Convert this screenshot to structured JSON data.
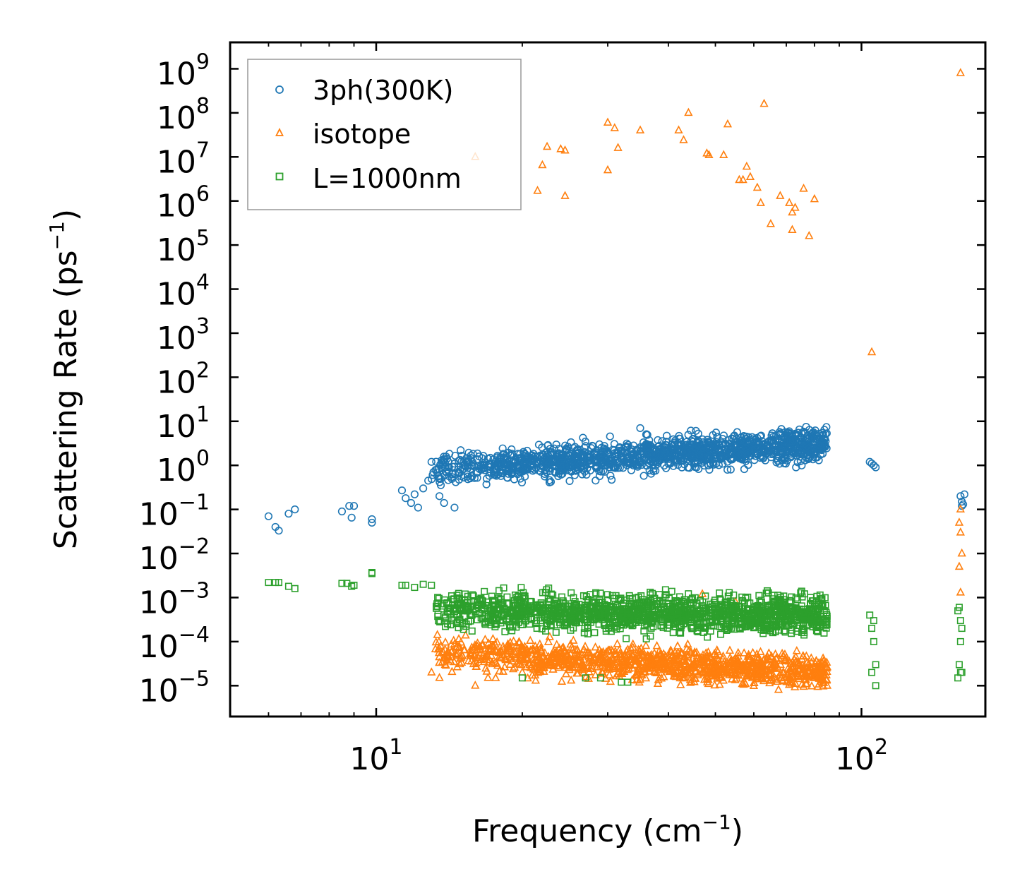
{
  "chart_data": {
    "type": "scatter",
    "title": "",
    "xlabel": "Frequency (cm",
    "xlabel_sup": "−1",
    "xlabel_end": ")",
    "ylabel": "Scattering Rate (ps",
    "ylabel_sup": "−1",
    "ylabel_end": ")",
    "xscale": "log",
    "yscale": "log",
    "xlim": [
      5.0,
      180.0
    ],
    "ylim_exp": [
      -5.7,
      9.6
    ],
    "x_ticks": [
      {
        "base": "10",
        "exp": "1",
        "value": 10
      },
      {
        "base": "10",
        "exp": "2",
        "value": 100
      }
    ],
    "y_ticks": [
      {
        "base": "10",
        "exp": "9",
        "value": 9
      },
      {
        "base": "10",
        "exp": "8",
        "value": 8
      },
      {
        "base": "10",
        "exp": "7",
        "value": 7
      },
      {
        "base": "10",
        "exp": "6",
        "value": 6
      },
      {
        "base": "10",
        "exp": "5",
        "value": 5
      },
      {
        "base": "10",
        "exp": "4",
        "value": 4
      },
      {
        "base": "10",
        "exp": "3",
        "value": 3
      },
      {
        "base": "10",
        "exp": "2",
        "value": 2
      },
      {
        "base": "10",
        "exp": "1",
        "value": 1
      },
      {
        "base": "10",
        "exp": "0",
        "value": 0
      },
      {
        "base": "10",
        "exp": "−1",
        "value": -1
      },
      {
        "base": "10",
        "exp": "−2",
        "value": -2
      },
      {
        "base": "10",
        "exp": "−3",
        "value": -3
      },
      {
        "base": "10",
        "exp": "−4",
        "value": -4
      },
      {
        "base": "10",
        "exp": "−5",
        "value": -5
      }
    ],
    "legend_position": "upper-left",
    "series": [
      {
        "name": "3ph(300K)",
        "marker": "circle",
        "color": "#1f77b4",
        "points": [
          [
            6.0,
            0.07
          ],
          [
            6.2,
            0.04
          ],
          [
            6.3,
            0.033
          ],
          [
            6.6,
            0.08
          ],
          [
            6.8,
            0.1
          ],
          [
            8.5,
            0.09
          ],
          [
            8.8,
            0.12
          ],
          [
            9.0,
            0.12
          ],
          [
            8.9,
            0.065
          ],
          [
            9.8,
            0.06
          ],
          [
            9.8,
            0.05
          ],
          [
            11.3,
            0.27
          ],
          [
            11.5,
            0.18
          ],
          [
            11.8,
            0.14
          ],
          [
            12.0,
            0.22
          ],
          [
            12.2,
            0.11
          ],
          [
            12.5,
            0.3
          ],
          [
            12.8,
            0.45
          ],
          [
            13.0,
            1.2
          ],
          [
            13.5,
            0.2
          ],
          [
            13.8,
            0.14
          ],
          [
            14.5,
            0.11
          ],
          [
            104,
            1.2
          ],
          [
            105,
            1.1
          ],
          [
            106,
            1.0
          ],
          [
            107,
            0.9
          ],
          [
            160,
            0.2
          ],
          [
            161,
            0.15
          ],
          [
            162,
            0.13
          ],
          [
            163,
            0.22
          ],
          [
            161,
            0.12
          ],
          [
            35,
            7.0
          ],
          [
            36,
            5.0
          ],
          [
            45,
            4.0
          ],
          [
            68,
            5.0
          ],
          [
            74,
            5.5
          ]
        ],
        "band": {
          "x_start": 13.0,
          "x_end": 85.0,
          "log_center_start": -0.1,
          "log_center_end": 0.5,
          "log_spread": 0.35,
          "count": 1500
        }
      },
      {
        "name": "isotope",
        "marker": "triangle",
        "color": "#ff7f0e",
        "points": [
          [
            16.0,
            10000000.0
          ],
          [
            21.5,
            1700000.0
          ],
          [
            22.0,
            6500000.0
          ],
          [
            22.5,
            17000000.0
          ],
          [
            24.0,
            15000000.0
          ],
          [
            24.5,
            14000000.0
          ],
          [
            24.5,
            1300000.0
          ],
          [
            30.0,
            60000000.0
          ],
          [
            31.0,
            45000000.0
          ],
          [
            30.0,
            5000000.0
          ],
          [
            31.5,
            16000000.0
          ],
          [
            35.0,
            40000000.0
          ],
          [
            42.0,
            40000000.0
          ],
          [
            43.0,
            24000000.0
          ],
          [
            44.0,
            100000000.0
          ],
          [
            48.0,
            12000000.0
          ],
          [
            48.5,
            11000000.0
          ],
          [
            52.0,
            11000000.0
          ],
          [
            53.0,
            55000000.0
          ],
          [
            56.0,
            3000000.0
          ],
          [
            57.0,
            3000000.0
          ],
          [
            58.0,
            6000000.0
          ],
          [
            59.0,
            3500000.0
          ],
          [
            61.0,
            2000000.0
          ],
          [
            62.0,
            900000.0
          ],
          [
            63.0,
            160000000.0
          ],
          [
            65.0,
            300000.0
          ],
          [
            68.0,
            1300000.0
          ],
          [
            71.0,
            900000.0
          ],
          [
            72.0,
            550000.0
          ],
          [
            72.0,
            220000.0
          ],
          [
            73.0,
            700000.0
          ],
          [
            76.0,
            1900000.0
          ],
          [
            78.0,
            160000.0
          ],
          [
            80.0,
            1100000.0
          ],
          [
            105,
            370
          ],
          [
            160,
            800000000.0
          ],
          [
            13.0,
            2e-05
          ],
          [
            13.5,
            1.5e-05
          ],
          [
            16.0,
            1e-05
          ],
          [
            17.0,
            1.5e-05
          ],
          [
            20.0,
            2e-05
          ],
          [
            47.0,
            0.0012
          ],
          [
            55.0,
            0.0008
          ],
          [
            160,
            0.1
          ],
          [
            159,
            0.05
          ],
          [
            160,
            0.03
          ],
          [
            161,
            0.01
          ],
          [
            159,
            0.005
          ],
          [
            160,
            0.0013
          ]
        ],
        "band": {
          "x_start": 13.0,
          "x_end": 85.0,
          "log_center_start": -4.25,
          "log_center_end": -4.7,
          "log_spread": 0.35,
          "count": 1200
        }
      },
      {
        "name": "L=1000nm",
        "marker": "square",
        "color": "#2ca02c",
        "points": [
          [
            6.0,
            0.0022
          ],
          [
            6.2,
            0.0022
          ],
          [
            6.3,
            0.0022
          ],
          [
            6.6,
            0.0018
          ],
          [
            6.8,
            0.0016
          ],
          [
            8.5,
            0.0021
          ],
          [
            8.7,
            0.0021
          ],
          [
            8.9,
            0.0018
          ],
          [
            9.0,
            0.0019
          ],
          [
            9.8,
            0.0035
          ],
          [
            9.8,
            0.0037
          ],
          [
            11.3,
            0.0019
          ],
          [
            11.5,
            0.0019
          ],
          [
            12.0,
            0.0017
          ],
          [
            12.5,
            0.002
          ],
          [
            13.0,
            0.0019
          ],
          [
            104,
            0.0004
          ],
          [
            105,
            0.0002
          ],
          [
            106,
            0.0003
          ],
          [
            106,
            0.0001
          ],
          [
            107,
            3e-05
          ],
          [
            107,
            1e-05
          ],
          [
            105,
            2e-05
          ],
          [
            158,
            0.0005
          ],
          [
            159,
            0.0006
          ],
          [
            160,
            0.0003
          ],
          [
            161,
            0.0002
          ],
          [
            160,
            0.0001
          ],
          [
            159,
            3e-05
          ],
          [
            160,
            2e-05
          ],
          [
            158,
            1.5e-05
          ],
          [
            161,
            2e-05
          ],
          [
            20.0,
            1.5e-05
          ],
          [
            27.0,
            1.5e-05
          ],
          [
            32.0,
            1.2e-05
          ],
          [
            33.0,
            1.2e-05
          ],
          [
            29.0,
            1.5e-05
          ]
        ],
        "band": {
          "x_start": 13.0,
          "x_end": 85.0,
          "log_center_start": -3.3,
          "log_center_end": -3.4,
          "log_spread": 0.4,
          "count": 1500
        }
      }
    ]
  }
}
